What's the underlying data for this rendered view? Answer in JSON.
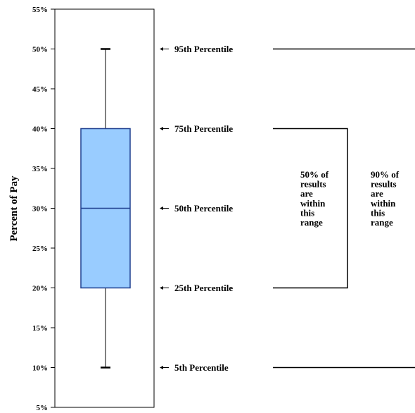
{
  "chart_data": {
    "type": "boxplot",
    "ylabel": "Percent of Pay",
    "ylim": [
      5,
      55
    ],
    "yticks": [
      "5%",
      "10%",
      "15%",
      "20%",
      "25%",
      "30%",
      "35%",
      "40%",
      "45%",
      "50%",
      "55%"
    ],
    "box": {
      "p5": 10,
      "p25": 20,
      "median": 30,
      "p75": 40,
      "p95": 50
    },
    "colors": {
      "box_fill": "#99ccff",
      "box_stroke": "#1f3f8f",
      "line": "#000000"
    },
    "percentile_labels": [
      {
        "value": 50,
        "text": "95th Percentile"
      },
      {
        "value": 40,
        "text": "75th Percentile"
      },
      {
        "value": 30,
        "text": "50th Percentile"
      },
      {
        "value": 20,
        "text": "25th Percentile"
      },
      {
        "value": 10,
        "text": "5th Percentile"
      }
    ],
    "range_notes": [
      {
        "lines": [
          "50% of",
          "results",
          "are",
          "within",
          "this",
          "range"
        ]
      },
      {
        "lines": [
          "90% of",
          "results",
          "are",
          "within",
          "this",
          "range"
        ]
      }
    ]
  }
}
